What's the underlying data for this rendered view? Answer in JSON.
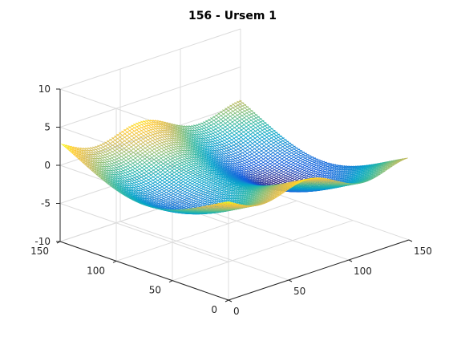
{
  "chart_data": {
    "type": "mesh-surface",
    "title": "156 - Ursem 1",
    "xlabel": "",
    "ylabel": "",
    "zlabel": "",
    "xlim": [
      0,
      150
    ],
    "ylim": [
      0,
      150
    ],
    "zlim": [
      -10,
      10
    ],
    "x_ticks": [
      0,
      50,
      100,
      150
    ],
    "y_ticks": [
      0,
      50,
      100,
      150
    ],
    "z_ticks": [
      -10,
      -5,
      0,
      5,
      10
    ],
    "grid": true,
    "colormap": "parula",
    "colormap_stops": [
      "#352a87",
      "#0f5cdd",
      "#1481d6",
      "#06a4ca",
      "#2eb7a4",
      "#87bf77",
      "#d1bb59",
      "#fec832",
      "#f9fb0e"
    ],
    "surface": {
      "function": "z = -sin(2x - 0.5*pi) - 3*cos(y) - 0.5*x",
      "x_domain": [
        -2.5,
        3
      ],
      "y_domain": [
        -2,
        2
      ],
      "grid_points": 150
    },
    "view": {
      "azimuth": -37.5,
      "elevation": 30
    }
  }
}
